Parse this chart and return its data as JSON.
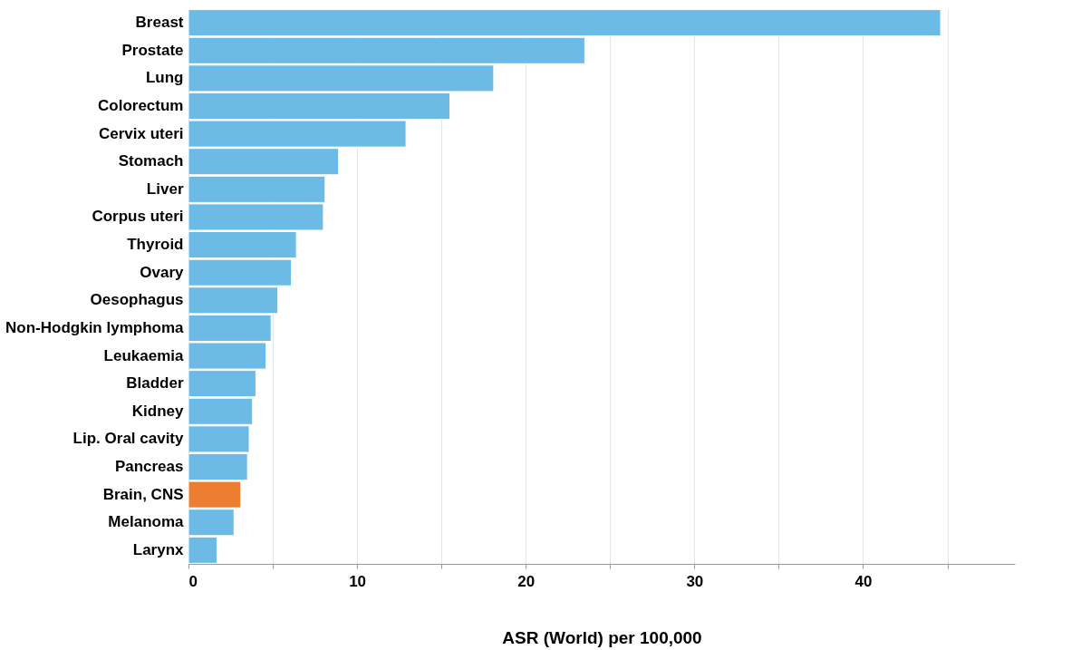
{
  "chart_data": {
    "type": "bar",
    "orientation": "horizontal",
    "xlabel": "ASR (World) per 100,000",
    "categories": [
      "Breast",
      "Prostate",
      "Lung",
      "Colorectum",
      "Cervix uteri",
      "Stomach",
      "Liver",
      "Corpus uteri",
      "Thyroid",
      "Ovary",
      "Oesophagus",
      "Non-Hodgkin lymphoma",
      "Leukaemia",
      "Bladder",
      "Kidney",
      "Lip. Oral cavity",
      "Pancreas",
      "Brain, CNS",
      "Melanoma",
      "Larynx"
    ],
    "values": [
      44.6,
      23.5,
      18.1,
      15.5,
      12.9,
      8.9,
      8.1,
      8.0,
      6.4,
      6.1,
      5.3,
      4.9,
      4.6,
      4.0,
      3.8,
      3.6,
      3.5,
      3.1,
      2.7,
      1.7
    ],
    "colors": [
      "#6bbbe6",
      "#6bbbe6",
      "#6bbbe6",
      "#6bbbe6",
      "#6bbbe6",
      "#6bbbe6",
      "#6bbbe6",
      "#6bbbe6",
      "#6bbbe6",
      "#6bbbe6",
      "#6bbbe6",
      "#6bbbe6",
      "#6bbbe6",
      "#6bbbe6",
      "#6bbbe6",
      "#6bbbe6",
      "#6bbbe6",
      "#ed7d31",
      "#6bbbe6",
      "#6bbbe6"
    ],
    "xlim": [
      0,
      49
    ],
    "xticks": [
      0,
      {
        "value": 5,
        "label": null
      },
      10,
      {
        "value": 15,
        "label": null
      },
      20,
      {
        "value": 25,
        "label": null
      },
      30,
      {
        "value": 35,
        "label": null
      },
      40,
      {
        "value": 45,
        "label": null
      }
    ],
    "grid": "x",
    "legend": false
  }
}
